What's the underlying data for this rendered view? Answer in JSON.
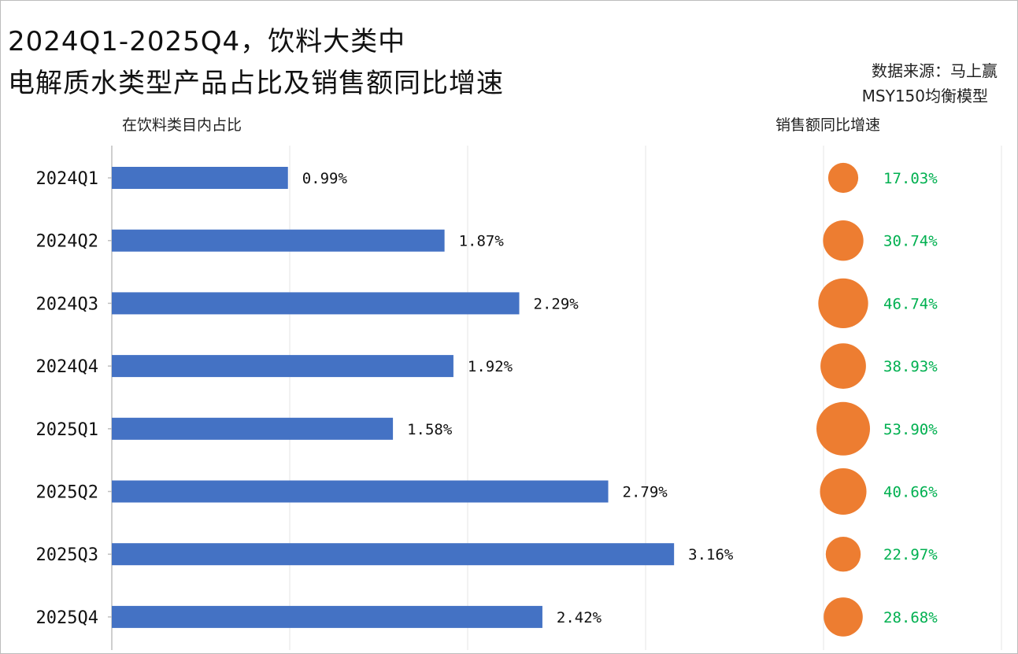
{
  "title": {
    "line1": "2024Q1-2025Q4，饮料大类中",
    "line2": "电解质水类型产品占比及销售额同比增速"
  },
  "source": {
    "line1": "数据来源：马上赢",
    "line2": "MSY150均衡模型"
  },
  "chart_data": {
    "type": "bar",
    "orientation": "horizontal",
    "categories": [
      "2024Q1",
      "2024Q2",
      "2024Q3",
      "2024Q4",
      "2025Q1",
      "2025Q2",
      "2025Q3",
      "2025Q4"
    ],
    "series": [
      {
        "name": "在饮料类目内占比",
        "values": [
          0.99,
          1.87,
          2.29,
          1.92,
          1.58,
          2.79,
          3.16,
          2.42
        ],
        "labels": [
          "0.99%",
          "1.87%",
          "2.29%",
          "1.92%",
          "1.58%",
          "2.79%",
          "3.16%",
          "2.42%"
        ],
        "color": "#4472C4"
      },
      {
        "name": "销售额同比增速",
        "chart_form": "bubble",
        "values": [
          17.03,
          30.74,
          46.74,
          38.93,
          53.9,
          40.66,
          22.97,
          28.68
        ],
        "labels": [
          "17.03%",
          "30.74%",
          "46.74%",
          "38.93%",
          "53.90%",
          "40.66%",
          "22.97%",
          "28.68%"
        ],
        "color": "#ED7D31",
        "label_color": "#00B050"
      }
    ],
    "xlim": [
      0,
      5
    ],
    "grid": true,
    "gridline_color": "#e6e6e6",
    "axis_color": "#bfbfbf"
  }
}
